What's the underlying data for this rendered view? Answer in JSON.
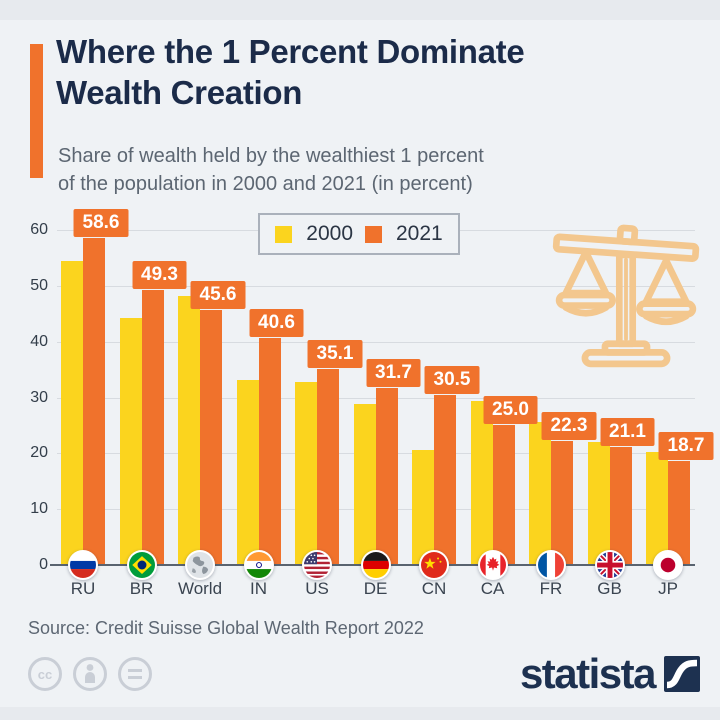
{
  "header": {
    "title_line1": "Where the 1 Percent Dominate",
    "title_line2": "Wealth Creation",
    "subtitle_line1": "Share of wealth held by the wealthiest 1 percent",
    "subtitle_line2": "of the population in 2000 and 2021 (in percent)"
  },
  "legend": {
    "items": [
      {
        "label": "2000",
        "color": "#FBD41E"
      },
      {
        "label": "2021",
        "color": "#F0722C"
      }
    ]
  },
  "chart_data": {
    "type": "bar",
    "title": "Where the 1 Percent Dominate Wealth Creation",
    "subtitle": "Share of wealth held by the wealthiest 1 percent of the population in 2000 and 2021 (in percent)",
    "categories": [
      "RU",
      "BR",
      "World",
      "IN",
      "US",
      "DE",
      "CN",
      "CA",
      "FR",
      "GB",
      "JP"
    ],
    "series": [
      {
        "name": "2000",
        "color": "#FBD41E",
        "labeled": false,
        "values": [
          54.4,
          44.2,
          48.2,
          33.2,
          32.8,
          28.8,
          20.6,
          29.4,
          25.7,
          22.0,
          20.2
        ]
      },
      {
        "name": "2021",
        "color": "#F0722C",
        "labeled": true,
        "values": [
          58.6,
          49.3,
          45.6,
          40.6,
          35.1,
          31.7,
          30.5,
          25.0,
          22.3,
          21.1,
          18.7
        ]
      }
    ],
    "value_labels": [
      "58.6",
      "49.3",
      "45.6",
      "40.6",
      "35.1",
      "31.7",
      "30.5",
      "25.0",
      "22.3",
      "21.1",
      "18.7"
    ],
    "xlabel": "",
    "ylabel": "",
    "ylim": [
      0,
      60
    ],
    "yticks": [
      0,
      10,
      20,
      30,
      40,
      50,
      60
    ],
    "grid": true,
    "legend_position": "top-center"
  },
  "footer": {
    "source": "Source: Credit Suisse Global Wealth Report 2022",
    "brand": "statista",
    "license_icons": [
      "cc-icon",
      "attribution-icon",
      "no-derivatives-icon"
    ]
  },
  "colors": {
    "background": "#EFF2F5",
    "accent_orange": "#F0722C",
    "bar_yellow": "#FBD41E",
    "title_navy": "#1B2B49",
    "subtitle_gray": "#5C6672",
    "grid_line": "#D7DBE0",
    "axis_text": "#333E4A",
    "scales_icon_cream": "#F3C78E",
    "brand_navy": "#1D3150"
  }
}
